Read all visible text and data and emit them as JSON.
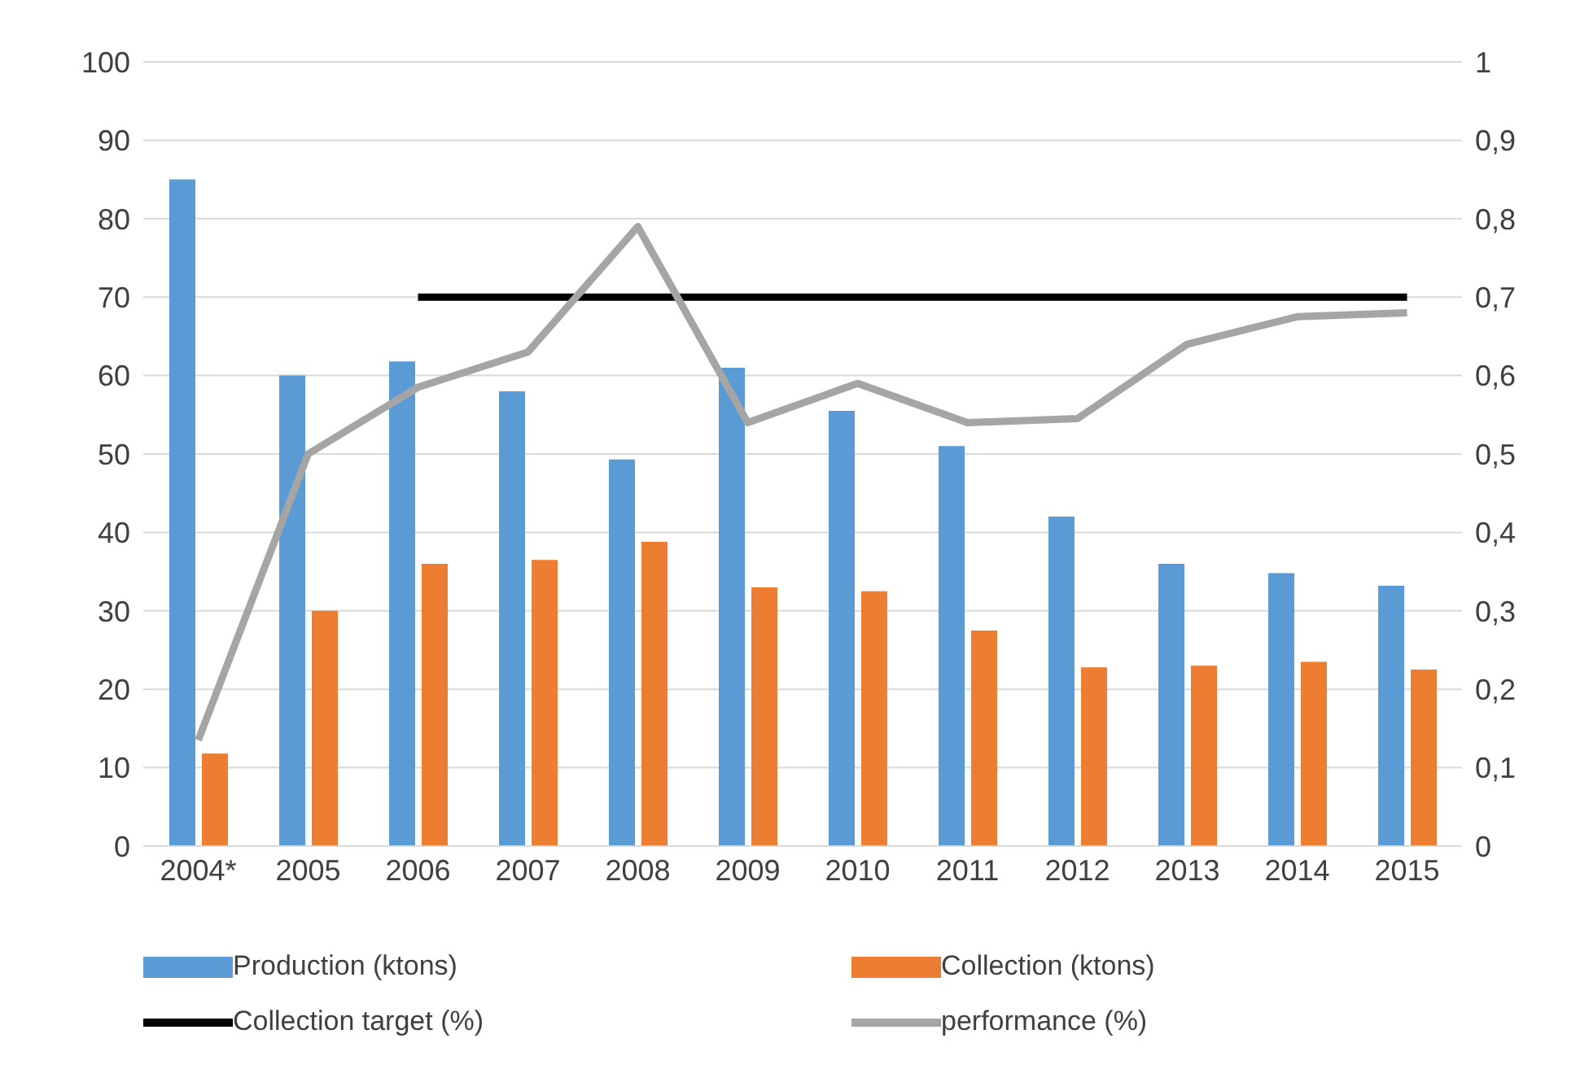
{
  "chart_data": {
    "type": "bar",
    "categories": [
      "2004*",
      "2005",
      "2006",
      "2007",
      "2008",
      "2009",
      "2010",
      "2011",
      "2012",
      "2013",
      "2014",
      "2015"
    ],
    "series": [
      {
        "name": "Production (ktons)",
        "color": "#5b9bd5",
        "values": [
          85,
          60,
          61.8,
          58,
          49.3,
          61,
          55.5,
          51,
          42,
          36,
          34.8,
          33.2
        ]
      },
      {
        "name": "Collection (ktons)",
        "color": "#ed7d31",
        "values": [
          11.8,
          30,
          36,
          36.5,
          38.8,
          33,
          32.5,
          27.5,
          22.8,
          23,
          23.5,
          22.5
        ]
      },
      {
        "name": "Collection target (%)",
        "type": "line",
        "axis": "y2",
        "color": "#000000",
        "values": [
          null,
          null,
          0.7,
          0.7,
          0.7,
          0.7,
          0.7,
          0.7,
          0.7,
          0.7,
          0.7,
          0.7
        ]
      },
      {
        "name": "performance (%)",
        "type": "line",
        "axis": "y2",
        "color": "#a5a5a5",
        "values": [
          0.135,
          0.5,
          0.585,
          0.63,
          0.79,
          0.54,
          0.59,
          0.54,
          0.545,
          0.64,
          0.675,
          0.68
        ]
      }
    ],
    "ylim": [
      0,
      100
    ],
    "yticks": [
      0,
      10,
      20,
      30,
      40,
      50,
      60,
      70,
      80,
      90,
      100
    ],
    "y2lim": [
      0,
      1
    ],
    "y2ticks": [
      0,
      {
        "value": 0.1,
        "label": "0,1"
      },
      {
        "value": 0.2,
        "label": "0,2"
      },
      {
        "value": 0.3,
        "label": "0,3"
      },
      {
        "value": 0.4,
        "label": "0,4"
      },
      {
        "value": 0.5,
        "label": "0,5"
      },
      {
        "value": 0.6,
        "label": "0,6"
      },
      {
        "value": 0.7,
        "label": "0,7"
      },
      {
        "value": 0.8,
        "label": "0,8"
      },
      {
        "value": 0.9,
        "label": "0,9"
      },
      1
    ],
    "grid": "y",
    "legend": "bottom",
    "marker": "none",
    "line_style": "solid"
  }
}
